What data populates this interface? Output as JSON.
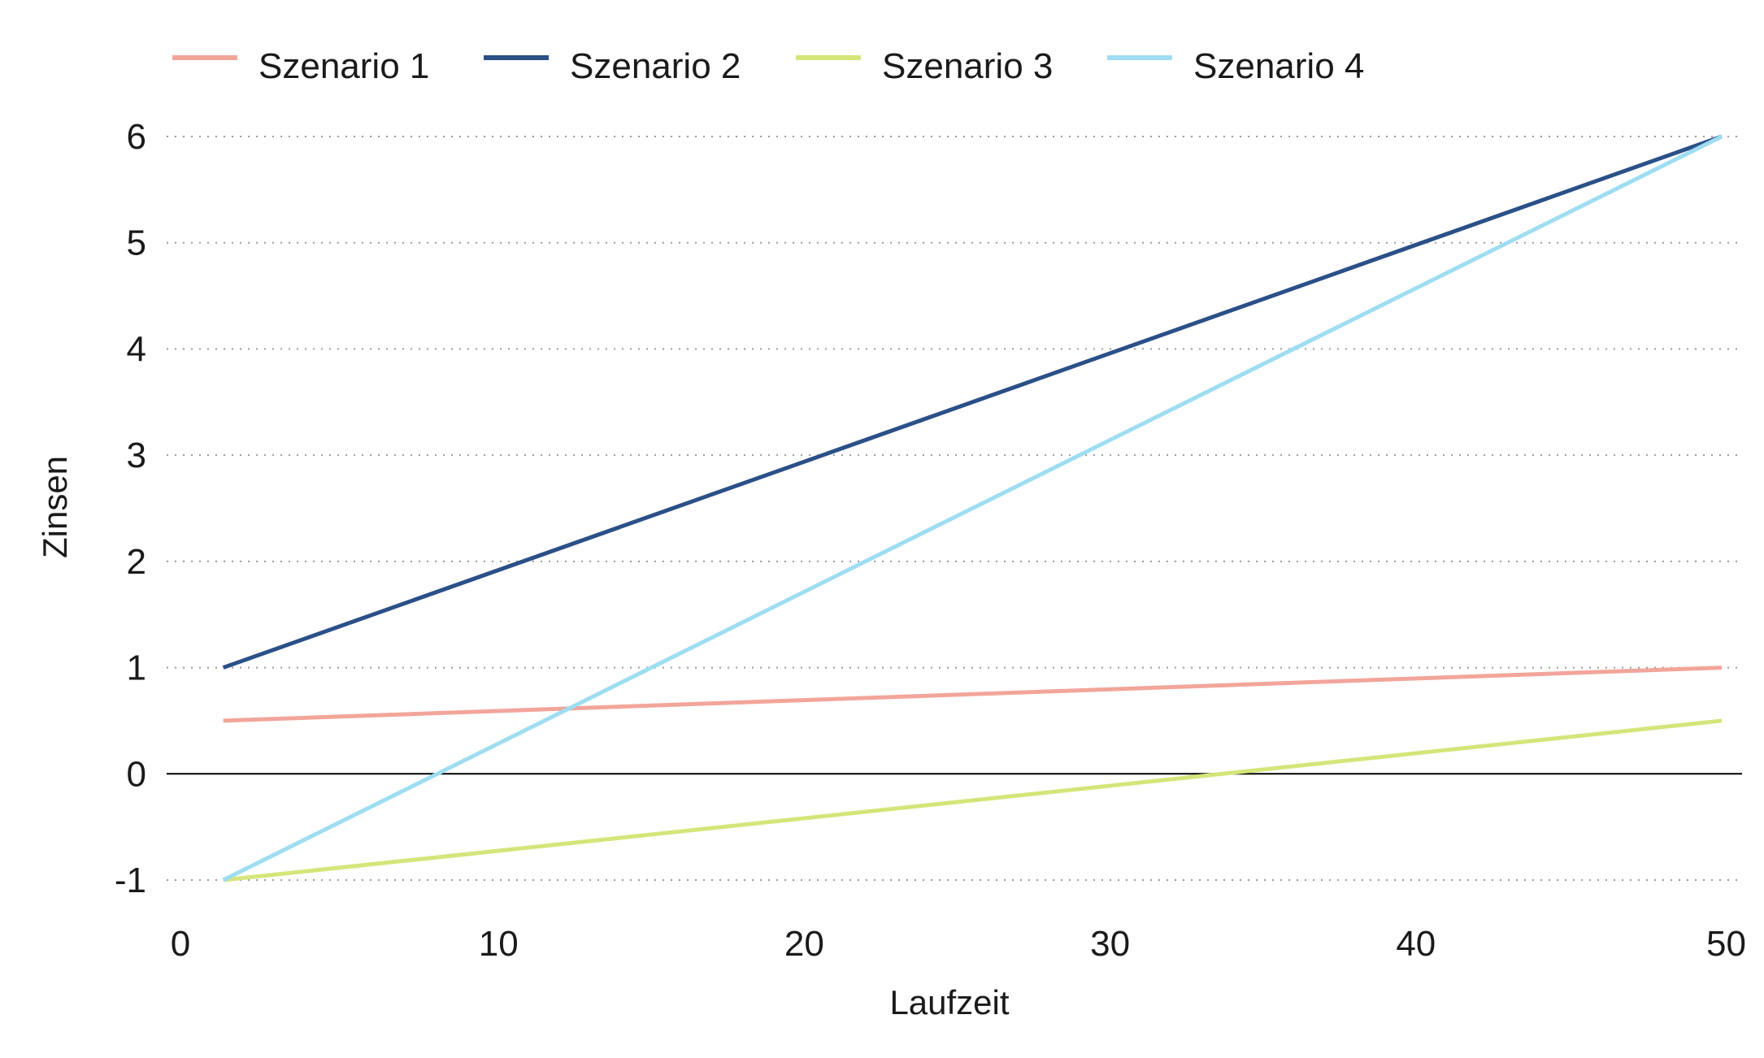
{
  "chart_data": {
    "type": "line",
    "title": "",
    "xlabel": "Laufzeit",
    "ylabel": "Zinsen",
    "xlim": [
      0,
      50
    ],
    "ylim": [
      -1,
      6
    ],
    "xticks": [
      0,
      10,
      20,
      30,
      40,
      50
    ],
    "yticks": [
      -1,
      0,
      1,
      2,
      3,
      4,
      5,
      6
    ],
    "grid": "horizontal-dotted",
    "legend_position": "top-left",
    "series": [
      {
        "name": "Szenario 1",
        "color": "#F2A59A",
        "x": [
          1,
          50
        ],
        "y": [
          0.5,
          1
        ]
      },
      {
        "name": "Szenario 2",
        "color": "#2B5088",
        "x": [
          1,
          50
        ],
        "y": [
          1,
          6
        ]
      },
      {
        "name": "Szenario 3",
        "color": "#D5E57A",
        "x": [
          1,
          50
        ],
        "y": [
          -1,
          0.5
        ]
      },
      {
        "name": "Szenario 4",
        "color": "#9EDDF2",
        "x": [
          1,
          50
        ],
        "y": [
          -1,
          6
        ]
      }
    ]
  }
}
